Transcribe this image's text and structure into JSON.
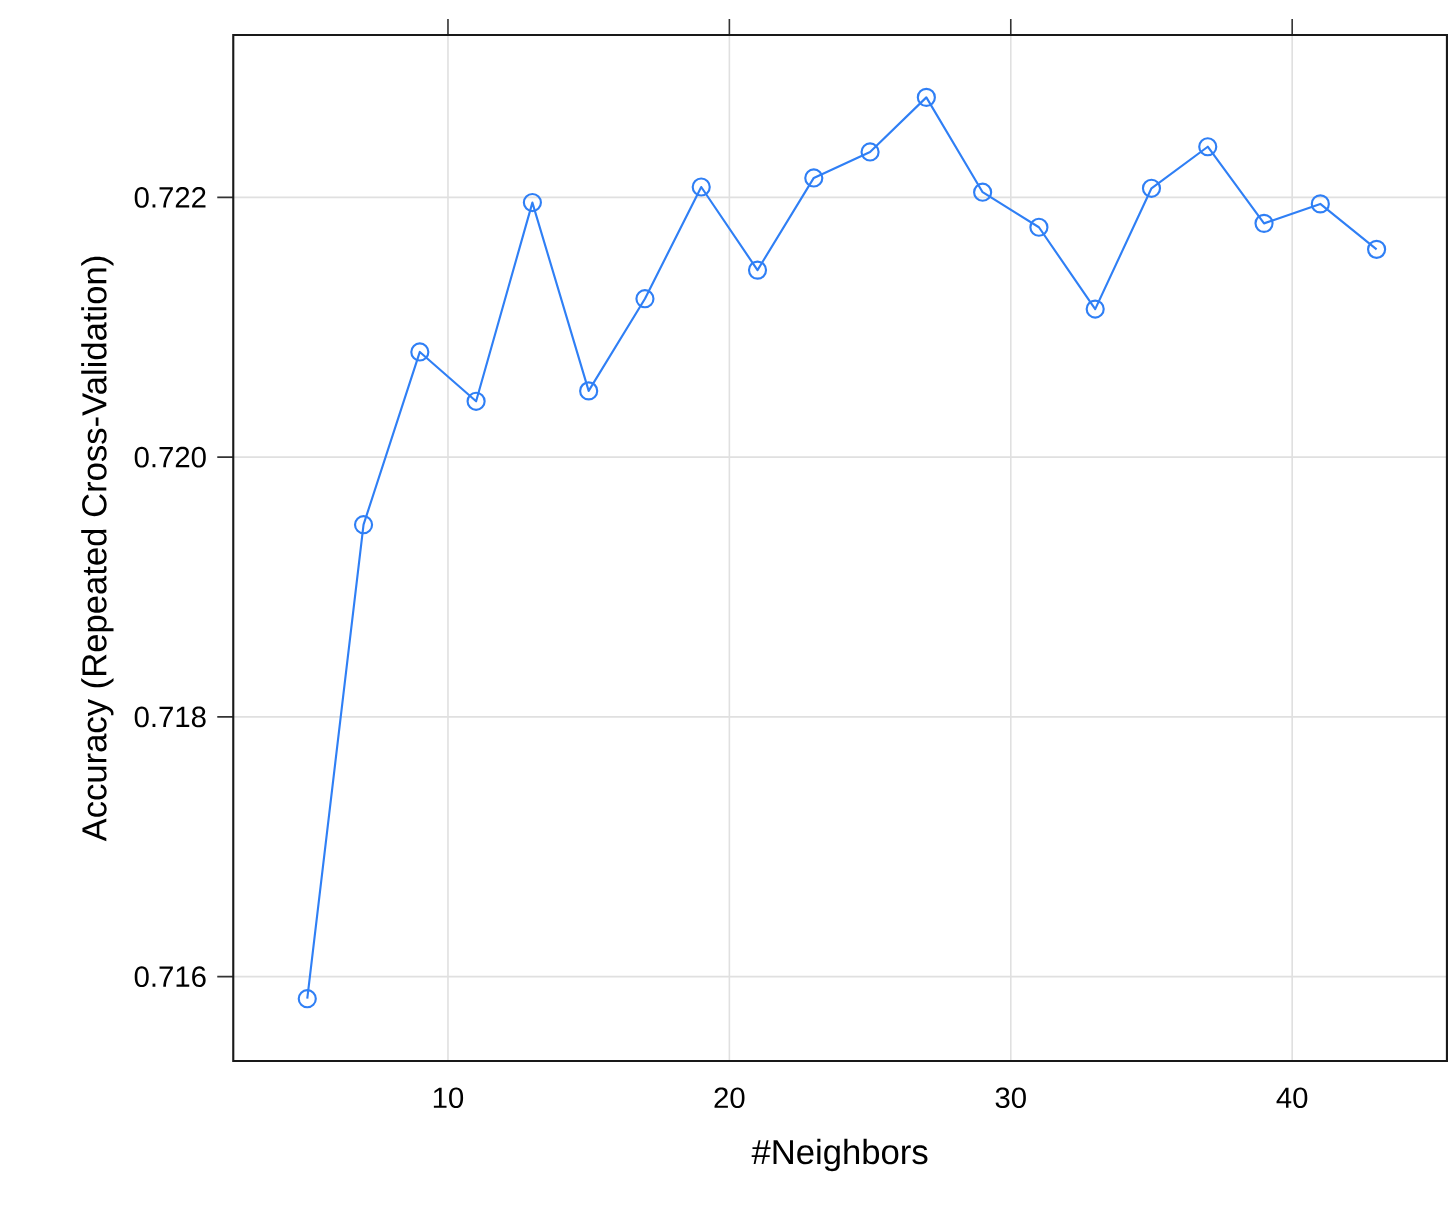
{
  "chart_data": {
    "type": "line",
    "xlabel": "#Neighbors",
    "ylabel": "Accuracy (Repeated Cross-Validation)",
    "x": [
      5,
      7,
      9,
      11,
      13,
      15,
      17,
      19,
      21,
      23,
      25,
      27,
      29,
      31,
      33,
      35,
      37,
      39,
      41,
      43
    ],
    "series": [
      {
        "color": "#2f7ff5",
        "values": [
          0.71583,
          0.71948,
          0.72081,
          0.72043,
          0.72196,
          0.72051,
          0.72122,
          0.72208,
          0.72144,
          0.72215,
          0.72235,
          0.72277,
          0.72204,
          0.72177,
          0.72114,
          0.72207,
          0.72239,
          0.7218,
          0.72195,
          0.7216
        ]
      }
    ],
    "xlim": [
      2.37,
      45.5
    ],
    "ylim": [
      0.71535,
      0.72325
    ],
    "xticks": [
      10,
      20,
      30,
      40
    ],
    "yticks": [
      {
        "value": 0.716,
        "label": "0.716"
      },
      {
        "value": 0.718,
        "label": "0.718"
      },
      {
        "value": 0.72,
        "label": "0.720"
      },
      {
        "value": 0.722,
        "label": "0.722"
      }
    ],
    "grid": true,
    "marker": "circle",
    "line_style": "solid"
  }
}
